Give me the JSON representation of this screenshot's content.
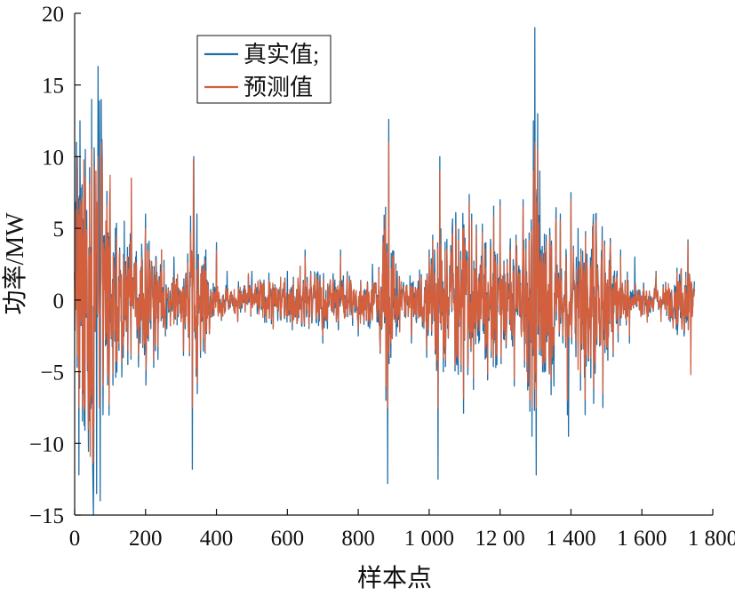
{
  "chart_data": {
    "type": "line",
    "title": "",
    "xlabel": "样本点",
    "ylabel": "功率/MW",
    "xlim": [
      0,
      1800
    ],
    "ylim": [
      -15,
      20
    ],
    "xticks": [
      0,
      200,
      400,
      600,
      800,
      1000,
      1200,
      1400,
      1600,
      1800
    ],
    "xtick_labels": [
      "0",
      "200",
      "400",
      "600",
      "800",
      "1 000",
      "12 00",
      "1 400",
      "1 600",
      "1 800"
    ],
    "yticks": [
      -15,
      -10,
      -5,
      0,
      5,
      10,
      15,
      20
    ],
    "ytick_labels": [
      "−15",
      "−10",
      "−5",
      "0",
      "5",
      "10",
      "15",
      "20"
    ],
    "legend_position": "top-center",
    "n_points": 1750,
    "series": [
      {
        "name": "真实值;",
        "color": "#1f6fa8",
        "key_points": [
          [
            2,
            6
          ],
          [
            5,
            11
          ],
          [
            8,
            9.2
          ],
          [
            12,
            -12.2
          ],
          [
            15,
            12.5
          ],
          [
            20,
            2
          ],
          [
            26,
            -6
          ],
          [
            30,
            10.5
          ],
          [
            38,
            -7
          ],
          [
            44,
            2
          ],
          [
            48,
            14
          ],
          [
            53,
            -15
          ],
          [
            56,
            9
          ],
          [
            62,
            -13.5
          ],
          [
            66,
            16.3
          ],
          [
            72,
            -14
          ],
          [
            75,
            14
          ],
          [
            80,
            -8
          ],
          [
            88,
            2
          ],
          [
            95,
            1
          ],
          [
            100,
            -1.5
          ],
          [
            115,
            5
          ],
          [
            125,
            -3.5
          ],
          [
            140,
            5.5
          ],
          [
            150,
            -4.5
          ],
          [
            160,
            8.5
          ],
          [
            172,
            3
          ],
          [
            185,
            -3
          ],
          [
            200,
            6
          ],
          [
            215,
            -2
          ],
          [
            230,
            3
          ],
          [
            245,
            3.5
          ],
          [
            260,
            -2
          ],
          [
            280,
            3
          ],
          [
            300,
            -1.5
          ],
          [
            320,
            1.5
          ],
          [
            332,
            -11.8
          ],
          [
            336,
            10
          ],
          [
            345,
            6
          ],
          [
            355,
            -4
          ],
          [
            370,
            3.5
          ],
          [
            400,
            4
          ],
          [
            430,
            2
          ],
          [
            460,
            -1.5
          ],
          [
            500,
            2
          ],
          [
            560,
            -2
          ],
          [
            600,
            2
          ],
          [
            650,
            3.5
          ],
          [
            700,
            -3
          ],
          [
            750,
            3.5
          ],
          [
            800,
            -2.5
          ],
          [
            840,
            2.5
          ],
          [
            870,
            4.5
          ],
          [
            878,
            -7
          ],
          [
            883,
            -12.8
          ],
          [
            886,
            12.6
          ],
          [
            892,
            -4
          ],
          [
            910,
            2
          ],
          [
            950,
            -3
          ],
          [
            1000,
            3.5
          ],
          [
            1015,
            3.5
          ],
          [
            1020,
            -2
          ],
          [
            1025,
            -12.5
          ],
          [
            1030,
            10
          ],
          [
            1040,
            -5
          ],
          [
            1065,
            5
          ],
          [
            1090,
            -5
          ],
          [
            1120,
            6
          ],
          [
            1140,
            -3
          ],
          [
            1160,
            4
          ],
          [
            1175,
            -4
          ],
          [
            1200,
            7
          ],
          [
            1240,
            -6
          ],
          [
            1265,
            7
          ],
          [
            1280,
            -6
          ],
          [
            1290,
            -9.5
          ],
          [
            1294,
            12.5
          ],
          [
            1298,
            19
          ],
          [
            1302,
            -12.2
          ],
          [
            1306,
            13
          ],
          [
            1312,
            9
          ],
          [
            1320,
            -5
          ],
          [
            1340,
            5
          ],
          [
            1352,
            -6
          ],
          [
            1370,
            6
          ],
          [
            1390,
            -8
          ],
          [
            1393,
            -9.5
          ],
          [
            1400,
            7.5
          ],
          [
            1420,
            5
          ],
          [
            1440,
            -8
          ],
          [
            1470,
            6
          ],
          [
            1490,
            -7.5
          ],
          [
            1510,
            3
          ],
          [
            1540,
            3.5
          ],
          [
            1565,
            -3
          ],
          [
            1580,
            3
          ],
          [
            1600,
            -1
          ],
          [
            1640,
            2
          ],
          [
            1680,
            -1.5
          ],
          [
            1710,
            2
          ],
          [
            1730,
            4.2
          ],
          [
            1738,
            -4.5
          ],
          [
            1745,
            0.5
          ]
        ]
      },
      {
        "name": "预测值",
        "color": "#d35f3d",
        "key_points": [
          [
            2,
            6
          ],
          [
            8,
            10
          ],
          [
            12,
            -7.5
          ],
          [
            20,
            2
          ],
          [
            30,
            8.5
          ],
          [
            38,
            -6
          ],
          [
            48,
            10.5
          ],
          [
            53,
            -7.5
          ],
          [
            60,
            9
          ],
          [
            66,
            10
          ],
          [
            70,
            -7.5
          ],
          [
            76,
            11
          ],
          [
            80,
            -6
          ],
          [
            95,
            1
          ],
          [
            125,
            -3
          ],
          [
            150,
            -3.5
          ],
          [
            160,
            8.5
          ],
          [
            200,
            5
          ],
          [
            245,
            3.5
          ],
          [
            300,
            -1.5
          ],
          [
            332,
            -7.5
          ],
          [
            335,
            9.8
          ],
          [
            355,
            -3.5
          ],
          [
            400,
            3.5
          ],
          [
            460,
            -1.5
          ],
          [
            560,
            -2
          ],
          [
            650,
            3
          ],
          [
            700,
            -2.5
          ],
          [
            750,
            3
          ],
          [
            800,
            -2
          ],
          [
            870,
            4
          ],
          [
            878,
            -6
          ],
          [
            883,
            -7.5
          ],
          [
            886,
            11
          ],
          [
            892,
            -3
          ],
          [
            950,
            -2.5
          ],
          [
            1000,
            3
          ],
          [
            1025,
            -7.5
          ],
          [
            1030,
            9
          ],
          [
            1040,
            -4
          ],
          [
            1065,
            4.5
          ],
          [
            1090,
            -4.5
          ],
          [
            1120,
            5.5
          ],
          [
            1175,
            -3.5
          ],
          [
            1200,
            6.5
          ],
          [
            1240,
            -5.5
          ],
          [
            1265,
            6.5
          ],
          [
            1290,
            -7.5
          ],
          [
            1294,
            9
          ],
          [
            1298,
            11
          ],
          [
            1302,
            -7.5
          ],
          [
            1306,
            10.5
          ],
          [
            1320,
            -4.5
          ],
          [
            1340,
            4.5
          ],
          [
            1370,
            5.5
          ],
          [
            1390,
            -7
          ],
          [
            1400,
            7
          ],
          [
            1440,
            -7
          ],
          [
            1470,
            5.5
          ],
          [
            1490,
            -6.5
          ],
          [
            1540,
            3
          ],
          [
            1565,
            -2.5
          ],
          [
            1600,
            -1
          ],
          [
            1640,
            1.8
          ],
          [
            1680,
            -1.2
          ],
          [
            1730,
            4
          ],
          [
            1738,
            -5.2
          ],
          [
            1745,
            0.5
          ]
        ]
      }
    ]
  }
}
